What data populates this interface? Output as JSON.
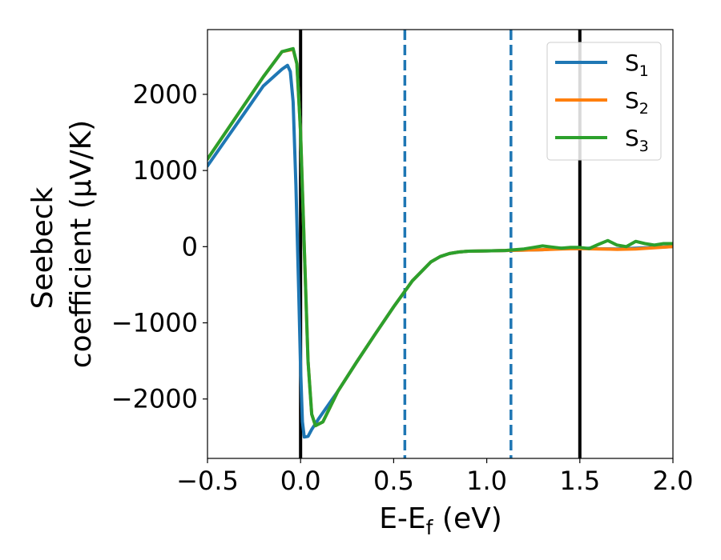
{
  "chart_data": {
    "type": "line",
    "xlabel": "E-E",
    "xlabel_sub": "f",
    "xlabel_unit": " (eV)",
    "ylabel_line1": "Seebeck",
    "ylabel_line2": "coefficient  (μV/K)",
    "xlim": [
      -0.5,
      2.0
    ],
    "ylim": [
      -2780,
      2850
    ],
    "xticks": [
      -0.5,
      0.0,
      0.5,
      1.0,
      1.5,
      2.0
    ],
    "xtick_labels": [
      "−0.5",
      "0.0",
      "0.5",
      "1.0",
      "1.5",
      "2.0"
    ],
    "yticks": [
      2000,
      1000,
      0,
      -1000,
      -2000
    ],
    "ytick_labels": [
      "2000",
      "1000",
      "0",
      "−1000",
      "−2000"
    ],
    "grid": false,
    "legend_position": "top-right",
    "vertical_lines": [
      {
        "x": 0.0,
        "style": "solid",
        "color": "#000000"
      },
      {
        "x": 0.56,
        "style": "dashed",
        "color": "#1f77b4"
      },
      {
        "x": 1.13,
        "style": "dashed",
        "color": "#1f77b4"
      },
      {
        "x": 1.5,
        "style": "solid",
        "color": "#000000"
      }
    ],
    "series": [
      {
        "name": "S",
        "sub": "1",
        "color": "#1f77b4",
        "x": [
          -0.5,
          -0.4,
          -0.3,
          -0.2,
          -0.1,
          -0.07,
          -0.055,
          -0.04,
          -0.025,
          -0.01,
          0.0,
          0.01,
          0.02,
          0.04,
          0.06,
          0.1,
          0.2,
          0.3,
          0.4,
          0.5,
          0.6,
          0.7,
          0.75,
          0.8,
          0.85,
          0.9,
          1.0,
          1.1,
          1.2,
          1.3,
          1.35,
          1.4,
          1.45,
          1.5,
          1.55,
          1.6,
          1.7,
          1.8,
          1.9,
          2.0
        ],
        "y": [
          1060,
          1410,
          1760,
          2110,
          2330,
          2380,
          2300,
          1900,
          800,
          -600,
          -1600,
          -2300,
          -2500,
          -2490,
          -2400,
          -2250,
          -1900,
          -1520,
          -1150,
          -790,
          -450,
          -200,
          -130,
          -90,
          -70,
          -60,
          -55,
          -50,
          -45,
          -40,
          -30,
          -20,
          -28,
          -25,
          -20,
          -28,
          -30,
          -20,
          -10,
          0
        ]
      },
      {
        "name": "S",
        "sub": "2",
        "color": "#ff7f0e",
        "x": [
          -0.5,
          -0.4,
          -0.3,
          -0.2,
          -0.1,
          -0.04,
          -0.02,
          0.0,
          0.02,
          0.04,
          0.06,
          0.08,
          0.12,
          0.2,
          0.3,
          0.4,
          0.5,
          0.6,
          0.7,
          0.75,
          0.8,
          0.85,
          0.9,
          1.0,
          1.1,
          1.2,
          1.3,
          1.4,
          1.5,
          1.6,
          1.7,
          1.8,
          1.9,
          2.0
        ],
        "y": [
          1150,
          1510,
          1870,
          2230,
          2560,
          2590,
          2400,
          1500,
          0,
          -1500,
          -2200,
          -2350,
          -2300,
          -1900,
          -1520,
          -1150,
          -790,
          -450,
          -200,
          -130,
          -90,
          -70,
          -60,
          -55,
          -50,
          -45,
          -40,
          -30,
          -25,
          -30,
          -35,
          -30,
          -15,
          0
        ]
      },
      {
        "name": "S",
        "sub": "3",
        "color": "#2ca02c",
        "x": [
          -0.5,
          -0.4,
          -0.3,
          -0.2,
          -0.1,
          -0.04,
          -0.02,
          0.0,
          0.02,
          0.04,
          0.06,
          0.08,
          0.12,
          0.2,
          0.3,
          0.4,
          0.5,
          0.6,
          0.7,
          0.75,
          0.8,
          0.85,
          0.9,
          1.0,
          1.1,
          1.2,
          1.25,
          1.3,
          1.35,
          1.4,
          1.45,
          1.5,
          1.55,
          1.6,
          1.65,
          1.7,
          1.75,
          1.8,
          1.85,
          1.9,
          1.95,
          2.0
        ],
        "y": [
          1150,
          1510,
          1870,
          2230,
          2560,
          2600,
          2400,
          1500,
          0,
          -1500,
          -2200,
          -2350,
          -2300,
          -1900,
          -1520,
          -1150,
          -790,
          -450,
          -200,
          -130,
          -90,
          -70,
          -60,
          -55,
          -50,
          -30,
          -10,
          10,
          -5,
          -20,
          -10,
          -10,
          -25,
          30,
          80,
          20,
          0,
          70,
          40,
          20,
          40,
          40
        ]
      }
    ]
  }
}
